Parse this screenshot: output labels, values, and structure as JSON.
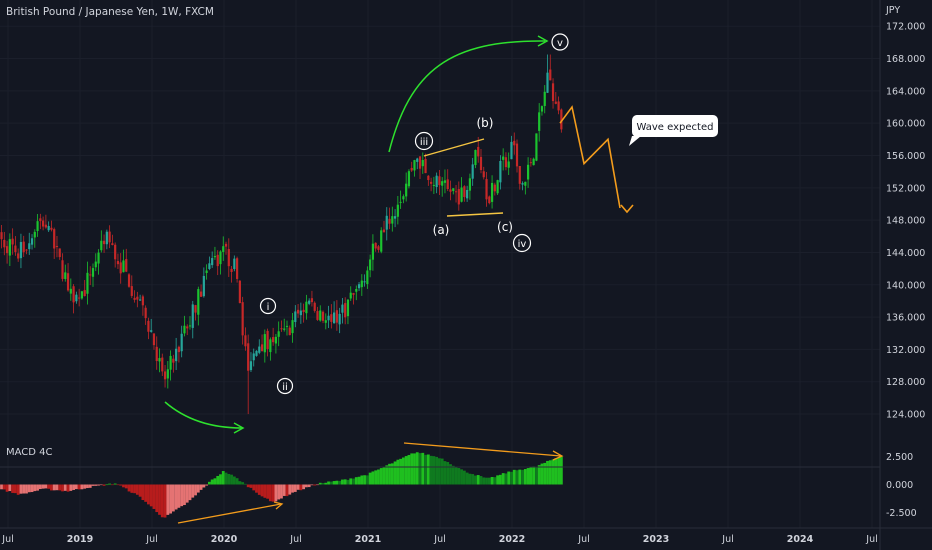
{
  "header": {
    "symbol_title": "British Pound / Japanese Yen, 1W, FXCM",
    "currency_label": "JPY"
  },
  "annotations": {
    "wave_labels": [
      "i",
      "ii",
      "iii",
      "(a)",
      "(b)",
      "(c)",
      "iv",
      "v"
    ],
    "callout_text": "Wave expected"
  },
  "indicator": {
    "name": "MACD 4C"
  },
  "colors": {
    "background": "#131722",
    "bull_candle": "#26a69a",
    "bull_bright": "#1bc32f",
    "bear_candle": "#c62828",
    "arrow_green": "#2ee12e",
    "projection_orange": "#f39c1c",
    "trendline_yellow": "#f5c542",
    "macd_green": "#1fbf1f",
    "macd_red": "#b71c1c",
    "axis_text": "#d1d4dc"
  },
  "chart_data": [
    {
      "type": "candlestick",
      "title": "British Pound / Japanese Yen, 1W, FXCM",
      "ylabel": "JPY",
      "ylim": [
        120,
        174
      ],
      "y_ticks": [
        "172.000",
        "168.000",
        "164.000",
        "160.000",
        "156.000",
        "152.000",
        "148.000",
        "144.000",
        "140.000",
        "136.000",
        "132.000",
        "128.000",
        "124.000"
      ],
      "x_ticks": [
        "Jul",
        "2019",
        "Jul",
        "2020",
        "Jul",
        "2021",
        "Jul",
        "2022",
        "Jul",
        "2023",
        "Jul",
        "2024",
        "Jul"
      ],
      "close_path": [
        [
          "2018-06",
          146
        ],
        [
          "2018-08",
          144
        ],
        [
          "2018-10",
          148
        ],
        [
          "2018-12",
          140
        ],
        [
          "2019-01",
          138
        ],
        [
          "2019-03",
          146
        ],
        [
          "2019-05",
          141
        ],
        [
          "2019-07",
          134
        ],
        [
          "2019-08",
          128
        ],
        [
          "2019-10",
          135
        ],
        [
          "2019-12",
          143
        ],
        [
          "2020-01",
          144
        ],
        [
          "2020-02",
          142
        ],
        [
          "2020-03",
          129
        ],
        [
          "2020-04",
          133
        ],
        [
          "2020-06",
          134
        ],
        [
          "2020-08",
          138
        ],
        [
          "2020-10",
          135
        ],
        [
          "2020-12",
          139
        ],
        [
          "2021-02",
          146
        ],
        [
          "2021-04",
          152
        ],
        [
          "2021-05",
          156
        ],
        [
          "2021-07",
          152
        ],
        [
          "2021-09",
          151
        ],
        [
          "2021-10",
          158
        ],
        [
          "2021-11",
          151
        ],
        [
          "2022-01",
          157
        ],
        [
          "2022-02",
          152
        ],
        [
          "2022-03",
          158
        ],
        [
          "2022-04",
          166
        ],
        [
          "2022-05",
          160
        ]
      ],
      "extremes": {
        "high": [
          "2022-04",
          168.5
        ],
        "low": [
          "2020-03",
          124
        ]
      },
      "projection_path": [
        [
          "2022-05",
          160
        ],
        [
          "2022-06",
          162
        ],
        [
          "2022-07",
          155
        ],
        [
          "2022-09",
          158
        ],
        [
          "2022-10",
          149.5
        ]
      ]
    },
    {
      "type": "histogram",
      "title": "MACD 4C",
      "ylim": [
        -3.5,
        3.5
      ],
      "y_ticks": [
        "2.500",
        "0.000",
        "-2.500"
      ],
      "x_ticks": [
        "Jul",
        "2019",
        "Jul",
        "2020",
        "Jul",
        "2021",
        "Jul",
        "2022",
        "Jul",
        "2023",
        "Jul",
        "2024",
        "Jul"
      ],
      "values_path": [
        [
          "2018-06",
          -0.3
        ],
        [
          "2018-08",
          -0.9
        ],
        [
          "2018-10",
          -0.4
        ],
        [
          "2018-12",
          -0.6
        ],
        [
          "2019-02",
          -0.2
        ],
        [
          "2019-04",
          0.1
        ],
        [
          "2019-06",
          -1.1
        ],
        [
          "2019-08",
          -3.0
        ],
        [
          "2019-10",
          -1.6
        ],
        [
          "2019-12",
          0.4
        ],
        [
          "2020-01",
          1.2
        ],
        [
          "2020-02",
          0.6
        ],
        [
          "2020-04",
          -0.9
        ],
        [
          "2020-05",
          -1.6
        ],
        [
          "2020-07",
          -0.6
        ],
        [
          "2020-09",
          0.1
        ],
        [
          "2020-11",
          0.4
        ],
        [
          "2021-01",
          0.9
        ],
        [
          "2021-03",
          1.9
        ],
        [
          "2021-05",
          2.9
        ],
        [
          "2021-07",
          2.4
        ],
        [
          "2021-09",
          1.2
        ],
        [
          "2021-11",
          0.5
        ],
        [
          "2022-01",
          1.2
        ],
        [
          "2022-03",
          1.6
        ],
        [
          "2022-05",
          2.5
        ]
      ]
    }
  ]
}
